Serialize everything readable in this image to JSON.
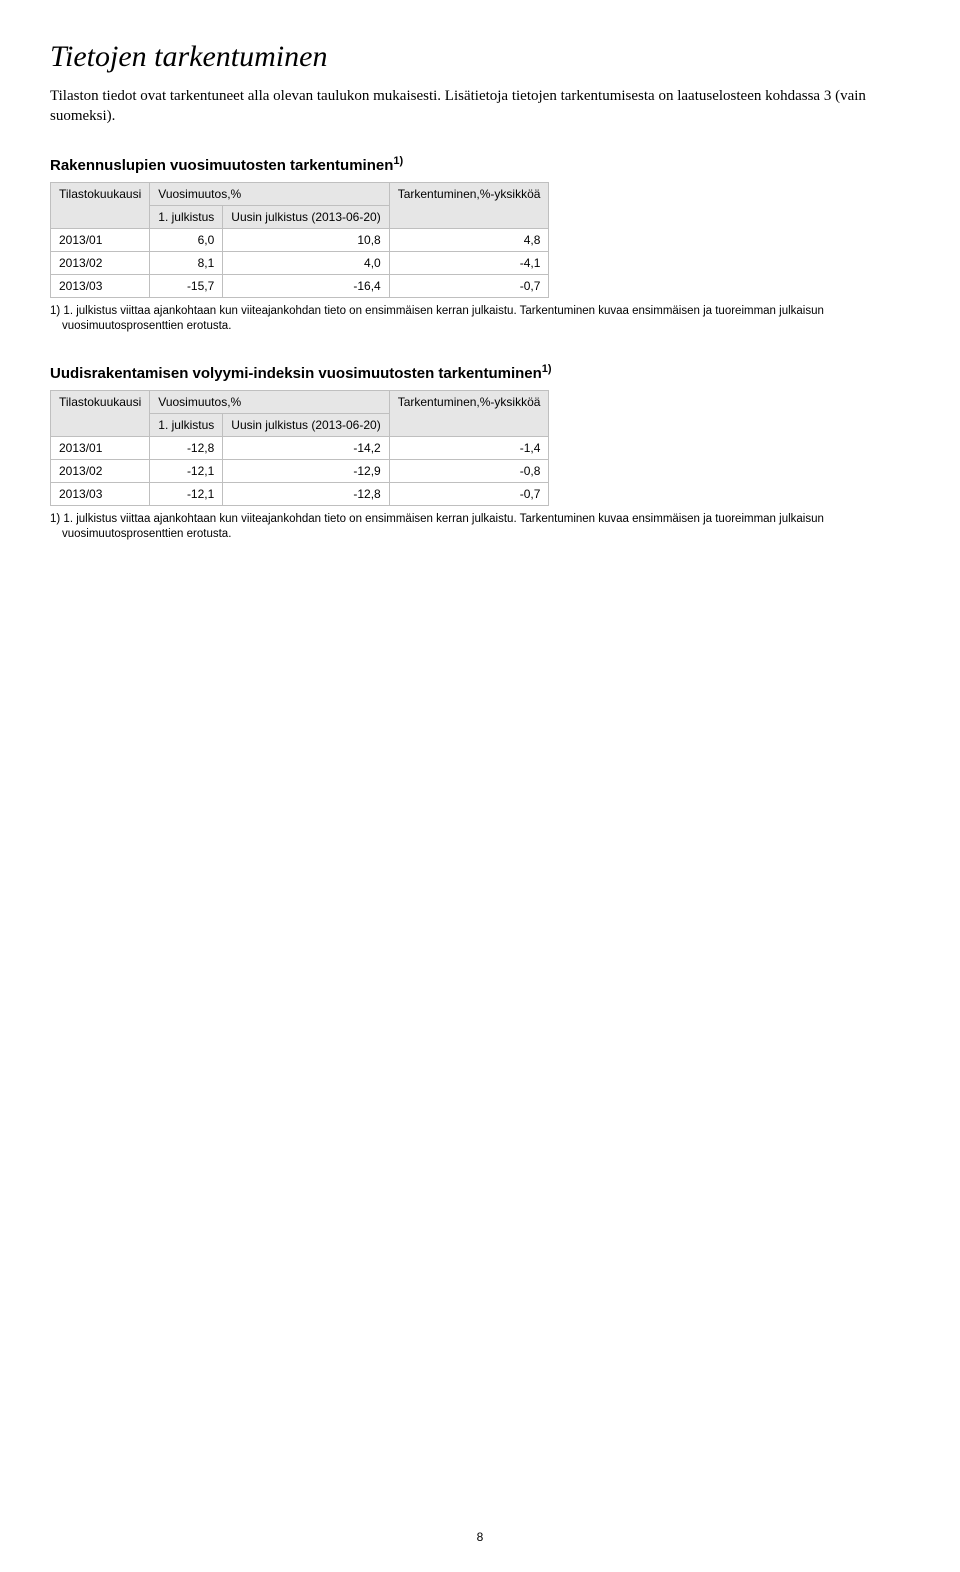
{
  "main_title": "Tietojen tarkentuminen",
  "intro": "Tilaston tiedot ovat tarkentuneet alla olevan taulukon mukaisesti. Lisätietoja tietojen tarkentumisesta on laatuselosteen kohdassa 3 (vain suomeksi).",
  "section1": {
    "title": "Rakennuslupien vuosimuutosten tarkentuminen",
    "sup": "1)",
    "header": {
      "col1": "Tilastokuukausi",
      "col2": "Vuosimuutos,%",
      "col3": "Tarkentuminen,%-yksikköä",
      "sub1": "1. julkistus",
      "sub2": "Uusin julkistus (2013-06-20)"
    },
    "rows": [
      {
        "period": "2013/01",
        "v1": "6,0",
        "v2": "10,8",
        "v3": "4,8"
      },
      {
        "period": "2013/02",
        "v1": "8,1",
        "v2": "4,0",
        "v3": "-4,1"
      },
      {
        "period": "2013/03",
        "v1": "-15,7",
        "v2": "-16,4",
        "v3": "-0,7"
      }
    ],
    "footnote": "1) 1. julkistus viittaa ajankohtaan kun viiteajankohdan tieto on ensimmäisen kerran julkaistu. Tarkentuminen kuvaa ensimmäisen ja tuoreimman julkaisun vuosimuutosprosenttien erotusta."
  },
  "section2": {
    "title": "Uudisrakentamisen volyymi-indeksin vuosimuutosten tarkentuminen",
    "sup": "1)",
    "header": {
      "col1": "Tilastokuukausi",
      "col2": "Vuosimuutos,%",
      "col3": "Tarkentuminen,%-yksikköä",
      "sub1": "1. julkistus",
      "sub2": "Uusin julkistus (2013-06-20)"
    },
    "rows": [
      {
        "period": "2013/01",
        "v1": "-12,8",
        "v2": "-14,2",
        "v3": "-1,4"
      },
      {
        "period": "2013/02",
        "v1": "-12,1",
        "v2": "-12,9",
        "v3": "-0,8"
      },
      {
        "period": "2013/03",
        "v1": "-12,1",
        "v2": "-12,8",
        "v3": "-0,7"
      }
    ],
    "footnote": "1) 1. julkistus viittaa ajankohtaan kun viiteajankohdan tieto on ensimmäisen kerran julkaistu. Tarkentuminen kuvaa ensimmäisen ja tuoreimman julkaisun vuosimuutosprosenttien erotusta."
  },
  "page_number": "8",
  "colors": {
    "header_bg": "#e6e6e6",
    "border": "#bfbfbf",
    "text": "#000000",
    "background": "#ffffff"
  },
  "typography": {
    "main_title_font": "Georgia serif italic",
    "main_title_size_pt": 22,
    "body_font": "Arial sans-serif",
    "table_font_size_pt": 9
  }
}
